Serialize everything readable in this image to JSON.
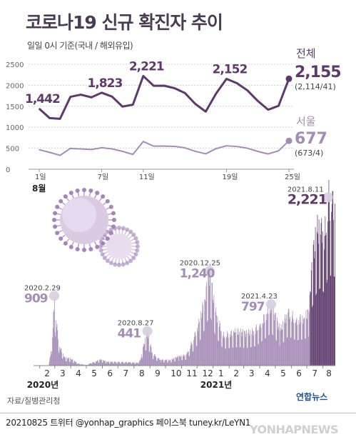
{
  "title": "코로나19 신규 확진자 추이",
  "subtitle": "일일 0시 기준(국내 / 해외유입)",
  "colors": {
    "total": "#5d3a6b",
    "seoul": "#a48cb6",
    "bar": "#a48cb6",
    "bar_recent": "#5d3a6b",
    "title": "#4a3a52"
  },
  "chart_data": [
    {
      "type": "line",
      "xlim": [
        1,
        25
      ],
      "ylim": [
        0,
        2500
      ],
      "yticks": [
        0,
        500,
        1000,
        1500,
        2000,
        2500
      ],
      "xtick_labels": [
        {
          "day": 1,
          "label": "1일"
        },
        {
          "day": 7,
          "label": "7일"
        },
        {
          "day": 11,
          "label": "11일"
        },
        {
          "day": 19,
          "label": "19일"
        },
        {
          "day": 25,
          "label": "25일"
        }
      ],
      "month_label": "8월",
      "x": [
        1,
        2,
        3,
        4,
        5,
        6,
        7,
        8,
        9,
        10,
        11,
        12,
        13,
        14,
        15,
        16,
        17,
        18,
        19,
        20,
        21,
        22,
        23,
        24,
        25
      ],
      "series": [
        {
          "name": "전체",
          "values": [
            1442,
            1219,
            1202,
            1725,
            1776,
            1712,
            1823,
            1729,
            1492,
            1537,
            2221,
            1987,
            1990,
            1930,
            1816,
            1556,
            1372,
            1805,
            2152,
            2050,
            1880,
            1628,
            1418,
            1509,
            2155
          ],
          "highlight": [
            {
              "day": 1,
              "label": "1,442"
            },
            {
              "day": 7,
              "label": "1,823"
            },
            {
              "day": 11,
              "label": "2,221"
            },
            {
              "day": 19,
              "label": "2,152"
            }
          ],
          "end_value": "2,155",
          "end_detail": "(2,114/41)"
        },
        {
          "name": "서울",
          "values": [
            465,
            402,
            331,
            496,
            482,
            469,
            512,
            485,
            425,
            353,
            660,
            550,
            550,
            545,
            510,
            426,
            367,
            491,
            558,
            541,
            501,
            425,
            364,
            439,
            677
          ],
          "end_value": "677",
          "end_detail": "(673/4)"
        }
      ]
    },
    {
      "type": "bar",
      "ylim": [
        0,
        2300
      ],
      "x_start": "2020-01-20",
      "x_end": "2021-08-24",
      "month_ticks": [
        "2",
        "3",
        "4",
        "5",
        "6",
        "7",
        "8",
        "9",
        "10",
        "11",
        "12",
        "1",
        "2",
        "3",
        "4",
        "5",
        "6",
        "7",
        "8"
      ],
      "year_labels": [
        {
          "month_index": 0,
          "label": "2020년"
        },
        {
          "month_index": 11,
          "label": "2021년"
        }
      ],
      "peaks": [
        {
          "date": "2020.2.29",
          "value": 909
        },
        {
          "date": "2020.8.27",
          "value": 441
        },
        {
          "date": "2020.12.25",
          "value": 1240
        },
        {
          "date": "2021.4.23",
          "value": 797
        },
        {
          "date": "2021.8.11",
          "value": 2221
        }
      ],
      "anchors": [
        [
          "2020-01-20",
          0
        ],
        [
          "2020-02-18",
          2
        ],
        [
          "2020-02-22",
          190
        ],
        [
          "2020-02-26",
          500
        ],
        [
          "2020-02-29",
          909
        ],
        [
          "2020-03-03",
          600
        ],
        [
          "2020-03-10",
          250
        ],
        [
          "2020-03-20",
          110
        ],
        [
          "2020-04-01",
          90
        ],
        [
          "2020-04-15",
          27
        ],
        [
          "2020-05-01",
          8
        ],
        [
          "2020-05-10",
          35
        ],
        [
          "2020-05-28",
          79
        ],
        [
          "2020-06-10",
          50
        ],
        [
          "2020-07-01",
          50
        ],
        [
          "2020-07-20",
          45
        ],
        [
          "2020-08-10",
          35
        ],
        [
          "2020-08-14",
          103
        ],
        [
          "2020-08-18",
          246
        ],
        [
          "2020-08-27",
          441
        ],
        [
          "2020-09-05",
          167
        ],
        [
          "2020-09-20",
          80
        ],
        [
          "2020-10-10",
          72
        ],
        [
          "2020-10-25",
          120
        ],
        [
          "2020-11-10",
          143
        ],
        [
          "2020-11-25",
          382
        ],
        [
          "2020-12-05",
          583
        ],
        [
          "2020-12-15",
          880
        ],
        [
          "2020-12-25",
          1240
        ],
        [
          "2021-01-05",
          715
        ],
        [
          "2021-01-20",
          400
        ],
        [
          "2021-02-10",
          444
        ],
        [
          "2021-02-20",
          448
        ],
        [
          "2021-03-05",
          424
        ],
        [
          "2021-03-20",
          456
        ],
        [
          "2021-04-01",
          551
        ],
        [
          "2021-04-15",
          698
        ],
        [
          "2021-04-23",
          797
        ],
        [
          "2021-05-10",
          463
        ],
        [
          "2021-05-25",
          707
        ],
        [
          "2021-06-10",
          611
        ],
        [
          "2021-06-25",
          634
        ],
        [
          "2021-07-05",
          711
        ],
        [
          "2021-07-10",
          1378
        ],
        [
          "2021-07-20",
          1781
        ],
        [
          "2021-07-28",
          1896
        ],
        [
          "2021-08-04",
          1725
        ],
        [
          "2021-08-11",
          2221
        ],
        [
          "2021-08-18",
          2152
        ],
        [
          "2021-08-24",
          2155
        ]
      ],
      "peak_amplitude": 0.45,
      "recent_from": "2021-07-07",
      "source": "자료/질병관리청",
      "logo": "연합뉴스"
    }
  ],
  "footer": "20210825 트위터 @yonhap_graphics 페이스북 tuney.kr/LeYN1",
  "watermark": "YONHAPNEWS"
}
